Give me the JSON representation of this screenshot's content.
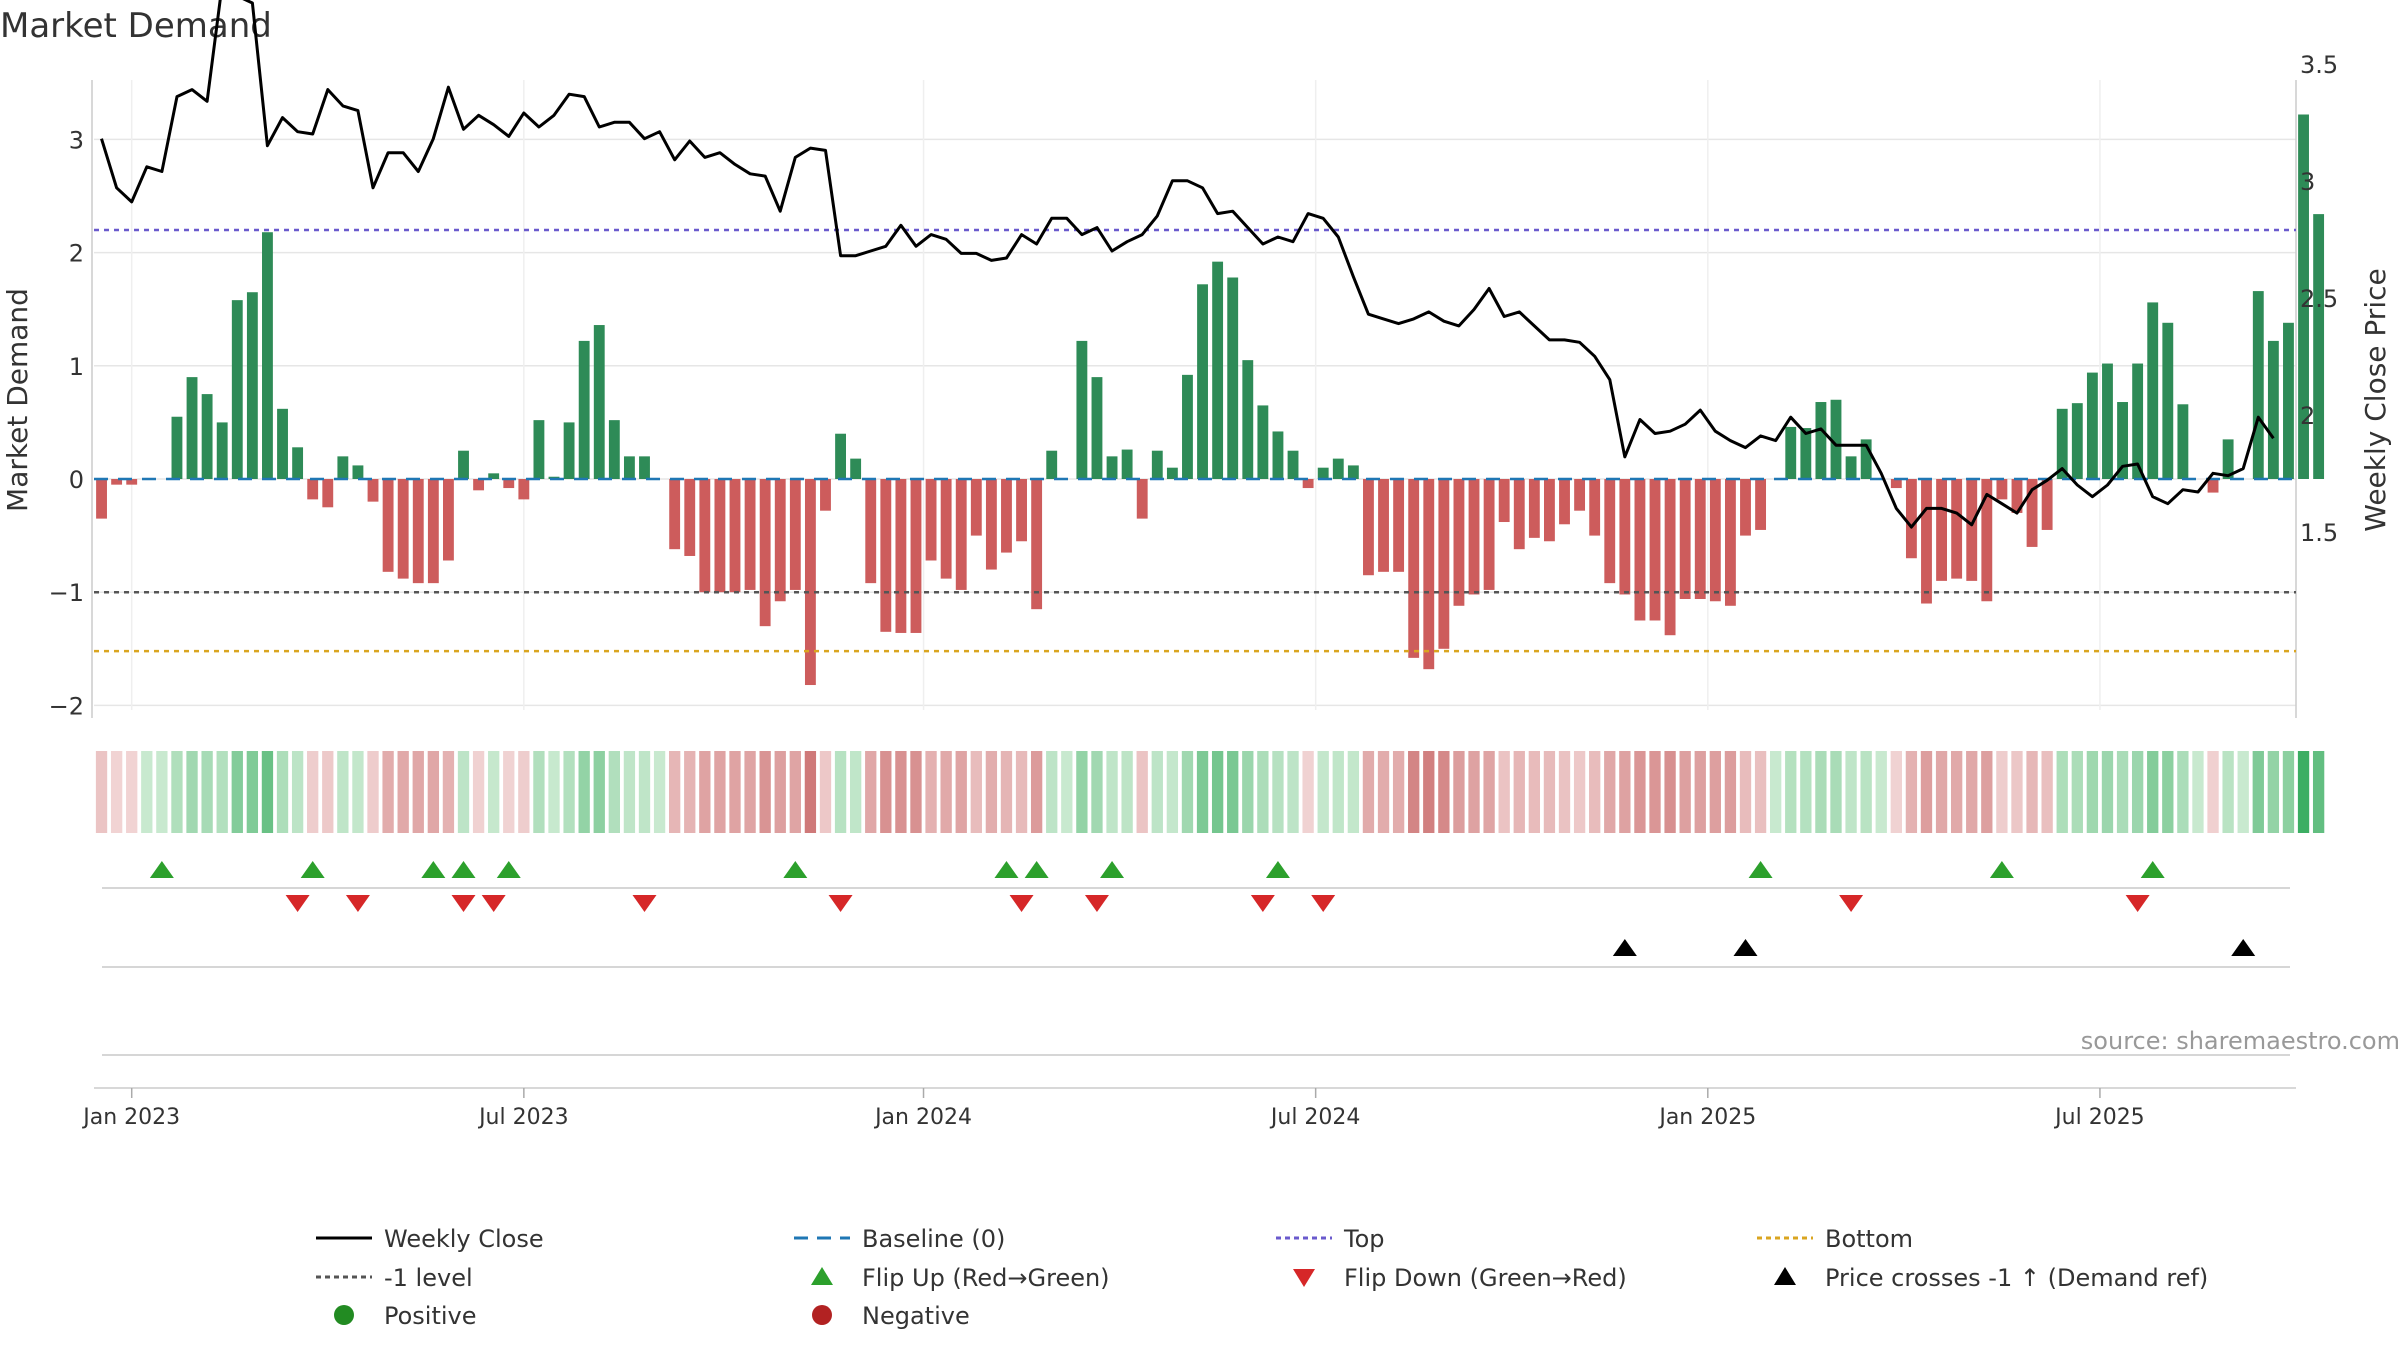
{
  "chart_data": {
    "type": "bar",
    "title": "Market Demand",
    "ylabel": "Market Demand",
    "ylabel_right": "Weekly Close Price",
    "ylim": [
      -2.2,
      3.35
    ],
    "ylim_right": [
      1.3,
      3.85
    ],
    "yticks": [
      "3",
      "2",
      "1",
      "0",
      "−1",
      "−2"
    ],
    "yticks_right": [
      "3.5",
      "3",
      "2.5",
      "2",
      "1.5"
    ],
    "date_ticks": [
      "Jan 2023",
      "Jul 2023",
      "Jan 2024",
      "Jul 2024",
      "Jan 2025",
      "Jul 2025"
    ],
    "week_count": 146,
    "tick_weeks": [
      2,
      28,
      54.5,
      80.5,
      106.5,
      132.5
    ],
    "levels": {
      "top": 2.2,
      "minus_one": -1.0,
      "bottom": -1.52,
      "baseline": 0
    },
    "series": [
      {
        "name": "Market Demand",
        "values": [
          -0.35,
          -0.05,
          -0.05,
          0,
          0,
          0.55,
          0.9,
          0.75,
          0.5,
          1.58,
          1.65,
          2.18,
          0.62,
          0.28,
          -0.18,
          -0.25,
          0.2,
          0.12,
          -0.2,
          -0.82,
          -0.88,
          -0.92,
          -0.92,
          -0.72,
          0.25,
          -0.1,
          0.05,
          -0.08,
          -0.18,
          0.52,
          0.02,
          0.5,
          1.22,
          1.36,
          0.52,
          0.2,
          0.2,
          0,
          -0.62,
          -0.68,
          -1,
          -1,
          -1,
          -0.98,
          -1.3,
          -1.08,
          -0.98,
          -1.82,
          -0.28,
          0.4,
          0.18,
          -0.92,
          -1.35,
          -1.36,
          -1.36,
          -0.72,
          -0.88,
          -0.98,
          -0.5,
          -0.8,
          -0.65,
          -0.55,
          -1.15,
          0.25,
          0,
          1.22,
          0.9,
          0.2,
          0.26,
          -0.35,
          0.25,
          0.1,
          0.92,
          1.72,
          1.92,
          1.78,
          1.05,
          0.65,
          0.42,
          0.25,
          -0.08,
          0.1,
          0.18,
          0.12,
          -0.85,
          -0.82,
          -0.82,
          -1.58,
          -1.68,
          -1.5,
          -1.12,
          -1.02,
          -0.98,
          -0.38,
          -0.62,
          -0.52,
          -0.55,
          -0.4,
          -0.28,
          -0.5,
          -0.92,
          -1.02,
          -1.25,
          -1.25,
          -1.38,
          -1.06,
          -1.06,
          -1.08,
          -1.12,
          -0.5,
          -0.45,
          0,
          0.46,
          0.45,
          0.68,
          0.7,
          0.2,
          0.35,
          0,
          -0.08,
          -0.7,
          -1.1,
          -0.9,
          -0.88,
          -0.9,
          -1.08,
          -0.18,
          -0.3,
          -0.6,
          -0.45,
          0.62,
          0.67,
          0.94,
          1.02,
          0.68,
          1.02,
          1.56,
          1.38,
          0.66,
          0,
          -0.12,
          0.35,
          0,
          1.66,
          1.22,
          1.38,
          3.22,
          2.34
        ]
      },
      {
        "name": "Weekly Close",
        "values": [
          3.18,
          2.97,
          2.91,
          3.06,
          3.04,
          3.36,
          3.39,
          3.34,
          3.84,
          3.79,
          3.76,
          3.15,
          3.27,
          3.21,
          3.2,
          3.39,
          3.32,
          3.3,
          2.97,
          3.12,
          3.12,
          3.04,
          3.18,
          3.4,
          3.22,
          3.28,
          3.24,
          3.19,
          3.29,
          3.23,
          3.28,
          3.37,
          3.36,
          3.23,
          3.25,
          3.25,
          3.18,
          3.21,
          3.09,
          3.17,
          3.1,
          3.12,
          3.07,
          3.03,
          3.02,
          2.87,
          3.1,
          3.14,
          3.13,
          2.68,
          2.68,
          2.7,
          2.72,
          2.81,
          2.72,
          2.77,
          2.75,
          2.69,
          2.69,
          2.66,
          2.67,
          2.77,
          2.73,
          2.84,
          2.84,
          2.77,
          2.8,
          2.7,
          2.74,
          2.77,
          2.85,
          3,
          3,
          2.97,
          2.86,
          2.87,
          2.8,
          2.73,
          2.76,
          2.74,
          2.86,
          2.84,
          2.76,
          2.59,
          2.43,
          2.41,
          2.39,
          2.41,
          2.44,
          2.4,
          2.38,
          2.45,
          2.54,
          2.42,
          2.44,
          2.38,
          2.32,
          2.32,
          2.31,
          2.25,
          2.15,
          1.82,
          1.98,
          1.92,
          1.93,
          1.96,
          2.02,
          1.93,
          1.89,
          1.86,
          1.91,
          1.89,
          1.99,
          1.92,
          1.94,
          1.87,
          1.87,
          1.87,
          1.75,
          1.6,
          1.52,
          1.6,
          1.6,
          1.58,
          1.53,
          1.66,
          1.62,
          1.58,
          1.68,
          1.72,
          1.77,
          1.7,
          1.65,
          1.7,
          1.78,
          1.79,
          1.65,
          1.62,
          1.68,
          1.67,
          1.75,
          1.74,
          1.77,
          1.99,
          1.9
        ]
      }
    ],
    "flip_up_weeks": [
      4,
      14,
      22,
      24,
      27,
      46,
      60,
      62,
      67,
      78,
      110,
      126,
      136
    ],
    "flip_down_weeks": [
      13,
      17,
      24,
      26,
      36,
      49,
      61,
      66,
      77,
      81,
      116,
      135
    ],
    "price_cross_weeks": [
      101,
      109,
      142
    ],
    "legend": {
      "items": [
        "Weekly Close",
        "Baseline (0)",
        "Top",
        "Bottom",
        "-1 level",
        "Flip Up (Red→Green)",
        "Flip Down (Green→Red)",
        "Price crosses -1 ↑ (Demand ref)",
        "Positive",
        "Negative"
      ]
    },
    "source": "source: sharemaestro.com",
    "colors": {
      "positive_bar": "#2e8b57",
      "negative_bar": "#cd5c5c",
      "price_line": "#000000",
      "baseline": "#1f77b4",
      "top": "#6a5acd",
      "minus_one": "#555555",
      "bottom": "#daa520",
      "flip_up": "#2ca02c",
      "flip_down": "#d62728",
      "cross": "#000000",
      "positive_dot": "#228b22",
      "negative_dot": "#b22222",
      "strip_pos_dark": "#3cae63",
      "strip_pos_light": "#c8e9cf",
      "strip_neg_dark": "#cd7575",
      "strip_neg_light": "#f2d6d6",
      "grid": "#e6e6e6",
      "axis": "#cccccc"
    }
  }
}
